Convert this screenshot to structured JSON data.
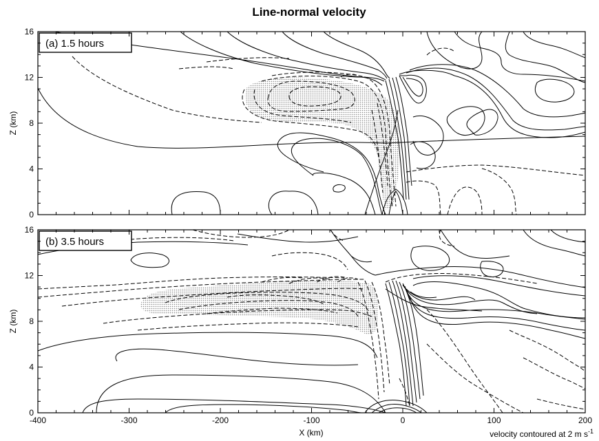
{
  "chart_data": [
    {
      "type": "contour",
      "title": "Line-normal velocity",
      "panel_label": "(a) 1.5 hours",
      "xlabel": "",
      "ylabel": "Z (km)",
      "xlim": [
        -400,
        200
      ],
      "ylim": [
        0,
        16
      ],
      "xticks": [
        -400,
        -300,
        -200,
        -100,
        0,
        100,
        200
      ],
      "yticks": [
        0,
        4,
        8,
        12,
        16
      ],
      "contour_interval_ms": 2,
      "positive_contours": "solid",
      "negative_contours": "dashed",
      "features": {
        "stippled_negative_region": {
          "x": [
            -140,
            -20
          ],
          "z": [
            5,
            11
          ]
        },
        "max_gradient_column_x": -10,
        "upper_outflow_jet": {
          "x": [
            0,
            200
          ],
          "z": [
            6,
            14
          ]
        }
      }
    },
    {
      "type": "contour",
      "title": "",
      "panel_label": "(b) 3.5 hours",
      "xlabel": "X (km)",
      "ylabel": "Z (km)",
      "xlim": [
        -400,
        200
      ],
      "ylim": [
        0,
        16
      ],
      "xticks": [
        -400,
        -300,
        -200,
        -100,
        0,
        100,
        200
      ],
      "yticks": [
        0,
        4,
        8,
        12,
        16
      ],
      "contour_interval_ms": 2,
      "positive_contours": "solid",
      "negative_contours": "dashed",
      "features": {
        "stippled_negative_region": {
          "x": [
            -260,
            -30
          ],
          "z": [
            7,
            11
          ]
        },
        "max_gradient_column_x": 0,
        "upper_outflow_jet": {
          "x": [
            0,
            170
          ],
          "z": [
            7,
            12
          ]
        }
      }
    }
  ],
  "footnote": {
    "prefix": "velocity contoured at  2 m s",
    "exponent": "-1"
  }
}
